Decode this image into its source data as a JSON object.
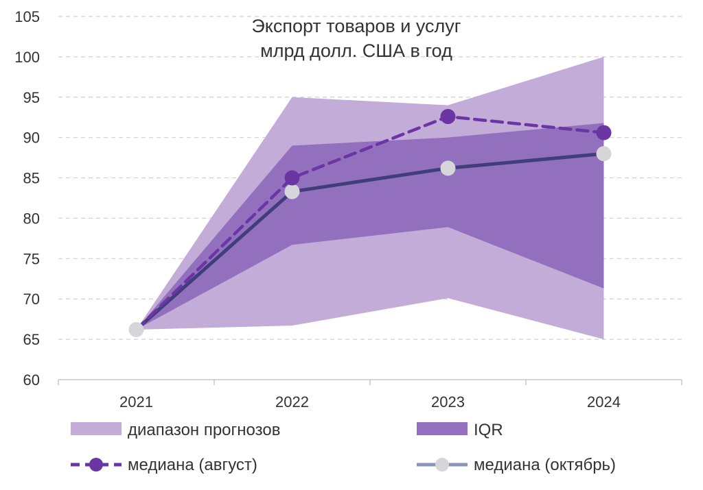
{
  "chart_data": {
    "type": "area",
    "title": [
      "Экспорт товаров и услуг",
      "млрд долл. США в год"
    ],
    "categories": [
      "2021",
      "2022",
      "2023",
      "2024"
    ],
    "ylim": [
      60,
      105
    ],
    "yticks": [
      60,
      65,
      70,
      75,
      80,
      85,
      90,
      95,
      100,
      105
    ],
    "grid": true,
    "bands": [
      {
        "name": "диапазон прогнозов",
        "color": "#c3acd8",
        "low": [
          66.2,
          66.7,
          70.1,
          65.0
        ],
        "high": [
          66.2,
          95.0,
          94.0,
          100.0
        ]
      },
      {
        "name": "IQR",
        "color": "#9370bd",
        "low": [
          66.2,
          76.7,
          78.9,
          71.3
        ],
        "high": [
          66.2,
          89.0,
          90.0,
          91.8
        ]
      }
    ],
    "series": [
      {
        "name": "медиана (август)",
        "color": "#6b35a4",
        "marker_color": "#6b35a4",
        "style": "dashed",
        "values": [
          66.2,
          85.0,
          92.6,
          90.6
        ]
      },
      {
        "name": "медиана (октябрь)",
        "color": "#3f3d7a",
        "marker_color": "#d6d6da",
        "legend_line_color": "#8a93b8",
        "style": "solid",
        "values": [
          66.2,
          83.3,
          86.2,
          88.0
        ]
      }
    ]
  }
}
